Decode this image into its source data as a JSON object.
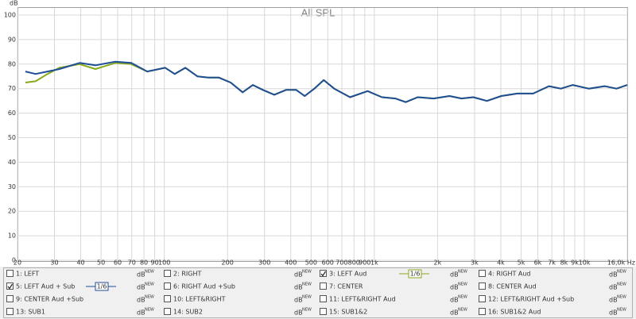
{
  "chart_data": {
    "type": "line",
    "title": "All SPL",
    "y_label": "dB",
    "log_x": true,
    "grid": true,
    "x": [
      21.8,
      24.4,
      27.8,
      31.7,
      39.5,
      47,
      58.5,
      69.6,
      82.9,
      94.4,
      101,
      112,
      126,
      144,
      162,
      182,
      207,
      236,
      264,
      294,
      334,
      381,
      424,
      466,
      518,
      574,
      644,
      766,
      929,
      1087,
      1259,
      1410,
      1608,
      1915,
      2280,
      2600,
      2960,
      3435,
      4020,
      4790,
      5700,
      6780,
      7730,
      8810,
      10490,
      12480,
      14230,
      16000
    ],
    "series": [
      {
        "name": "3: LEFT Aud",
        "color": "#88a81c",
        "values": [
          72.5,
          73,
          76,
          78.5,
          80,
          78,
          80.5,
          80,
          77,
          78,
          78.5,
          76,
          78.5,
          75,
          74.5,
          74.5,
          72.5,
          68.5,
          71.5,
          69.5,
          67.5,
          69.5,
          69.5,
          67,
          70,
          73.5,
          70,
          66.5,
          69,
          66.5,
          66,
          64.5,
          66.5,
          66,
          67,
          66,
          66.5,
          65,
          67,
          68,
          68,
          71,
          70,
          71.5,
          70,
          71,
          70,
          71.5
        ]
      },
      {
        "name": "5: LEFT Aud + Sub",
        "color": "#1f4e96",
        "values": [
          77,
          76,
          77,
          78,
          80.5,
          79.5,
          81,
          80.5,
          77,
          78,
          78.5,
          76,
          78.5,
          75,
          74.5,
          74.5,
          72.5,
          68.5,
          71.5,
          69.5,
          67.5,
          69.5,
          69.5,
          67,
          70,
          73.5,
          70,
          66.5,
          69,
          66.5,
          66,
          64.5,
          66.5,
          66,
          67,
          66,
          66.5,
          65,
          67,
          68,
          68,
          71,
          70,
          71.5,
          70,
          71,
          70,
          71.5
        ]
      }
    ],
    "xlim": [
      20,
      16000
    ],
    "xticks": [
      20,
      30,
      40,
      50,
      60,
      70,
      80,
      90,
      100,
      200,
      300,
      400,
      500,
      600,
      700,
      800,
      900,
      {
        "value": 1000,
        "label": "1k"
      },
      {
        "value": 2000,
        "label": "2k"
      },
      {
        "value": 3000,
        "label": "3k"
      },
      {
        "value": 4000,
        "label": "4k"
      },
      {
        "value": 5000,
        "label": "5k"
      },
      {
        "value": 6000,
        "label": "6k"
      },
      {
        "value": 7000,
        "label": "7k"
      },
      {
        "value": 8000,
        "label": "8k"
      },
      {
        "value": 9000,
        "label": "9k"
      },
      {
        "value": 10000,
        "label": "10k"
      },
      {
        "value": 16000,
        "label": "16,0k Hz"
      }
    ],
    "ylim": [
      0,
      100
    ],
    "yticks": [
      0,
      10,
      20,
      30,
      40,
      50,
      60,
      70,
      80,
      90,
      100
    ]
  },
  "legend_panel": {
    "items": [
      {
        "label": "1: LEFT",
        "checked": false,
        "color": "#e03030",
        "unit": "dB",
        "tag": "NEW"
      },
      {
        "label": "2: RIGHT",
        "checked": false,
        "color": "#e03030",
        "unit": "dB",
        "tag": "NEW"
      },
      {
        "label": "3: LEFT Aud",
        "checked": true,
        "color": "#88a81c",
        "unit": "dB",
        "tag": "NEW",
        "smoothing": "1/6"
      },
      {
        "label": "4: RIGHT Aud",
        "checked": false,
        "color": "#88a81c",
        "unit": "dB",
        "tag": "NEW"
      },
      {
        "label": "5: LEFT Aud + Sub",
        "checked": true,
        "color": "#1f4e96",
        "unit": "dB",
        "tag": "NEW",
        "smoothing": "1/6"
      },
      {
        "label": "6: RIGHT Aud +Sub",
        "checked": false,
        "color": "#3060c0",
        "unit": "dB",
        "tag": "NEW"
      },
      {
        "label": "7: CENTER",
        "checked": false,
        "color": "#e03030",
        "unit": "dB",
        "tag": "NEW"
      },
      {
        "label": "8: CENTER Aud",
        "checked": false,
        "color": "#88a81c",
        "unit": "dB",
        "tag": "NEW"
      },
      {
        "label": "9: CENTER Aud +Sub",
        "checked": false,
        "color": "#c89a20",
        "unit": "dB",
        "tag": "NEW"
      },
      {
        "label": "10: LEFT&RIGHT",
        "checked": false,
        "color": "#e03030",
        "unit": "dB",
        "tag": "NEW"
      },
      {
        "label": "11: LEFT&RIGHT Aud",
        "checked": false,
        "color": "#2050b0",
        "unit": "dB",
        "tag": "NEW"
      },
      {
        "label": "12: LEFT&RIGHT Aud +Sub",
        "checked": false,
        "color": "#b03090",
        "unit": "dB",
        "tag": "NEW"
      },
      {
        "label": "13: SUB1",
        "checked": false,
        "color": "#2a9aa8",
        "unit": "dB",
        "tag": "NEW"
      },
      {
        "label": "14: SUB2",
        "checked": false,
        "color": "#2a9a30",
        "unit": "dB",
        "tag": "NEW"
      },
      {
        "label": "15: SUB1&2",
        "checked": false,
        "color": "#d030c0",
        "unit": "dB",
        "tag": "NEW"
      },
      {
        "label": "16: SUB1&2 Aud",
        "checked": false,
        "color": "#902020",
        "unit": "dB",
        "tag": "NEW"
      }
    ]
  }
}
